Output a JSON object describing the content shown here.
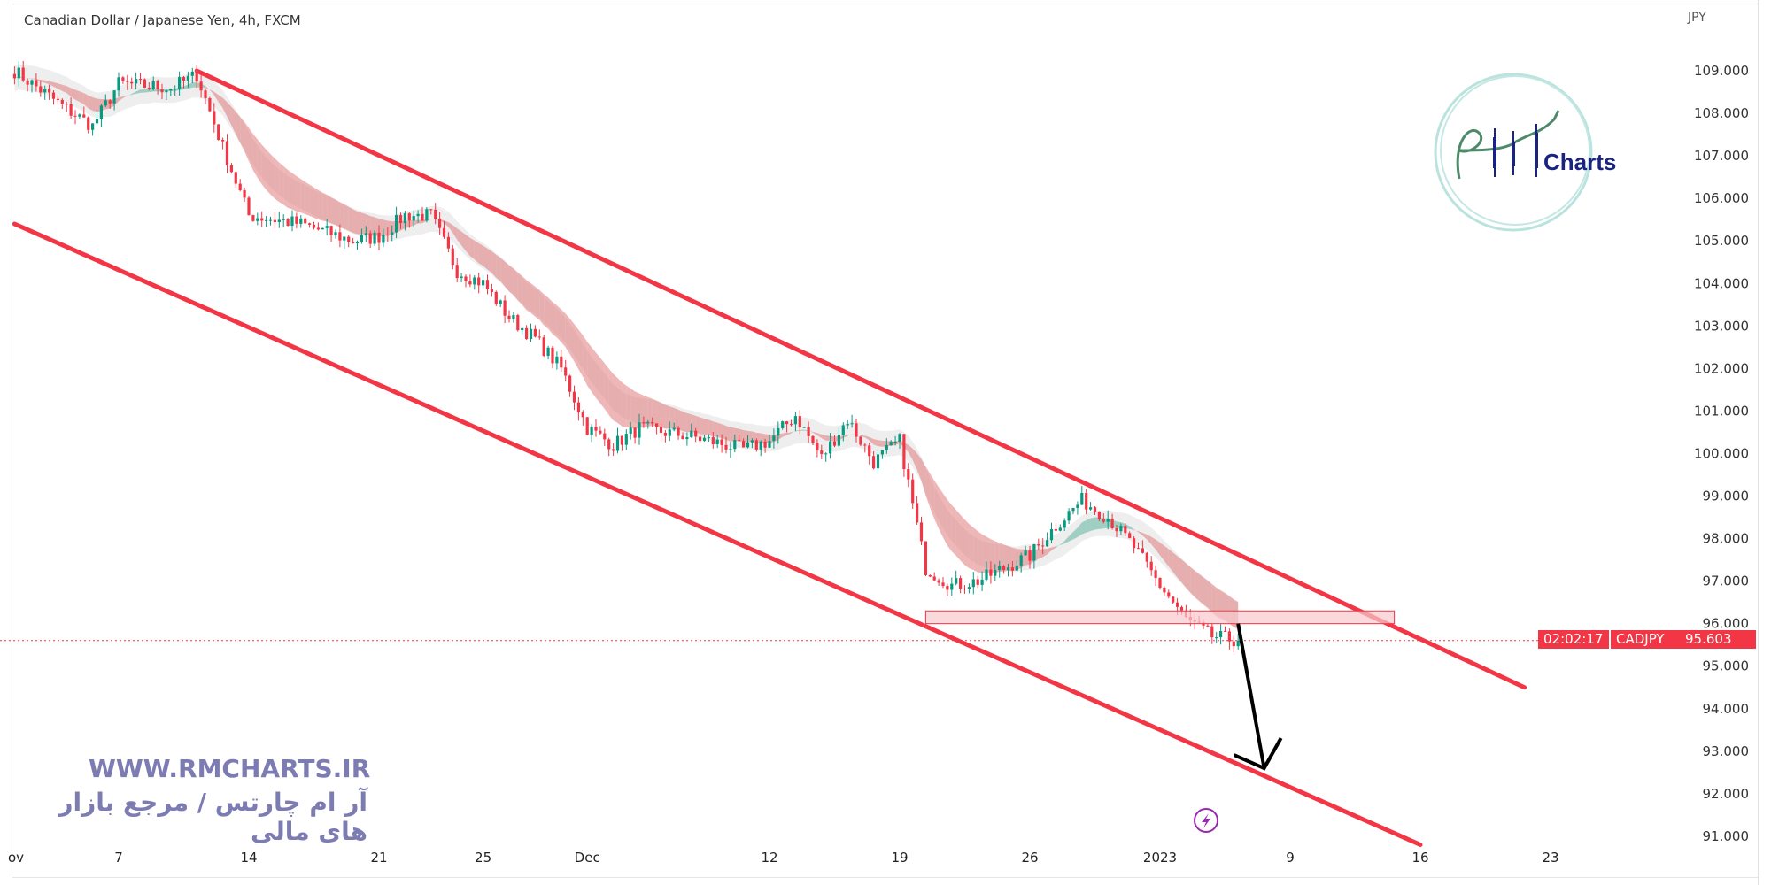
{
  "header": {
    "title": "Canadian Dollar / Japanese Yen, 4h, FXCM",
    "currency": "JPY"
  },
  "price_label": {
    "symbol": "CADJPY",
    "price": "95.603",
    "countdown": "02:02:17"
  },
  "watermark": {
    "site": "WWW.RMCHARTS.IR",
    "tagline": "آر ام چارتس / مرجع بازار های مالی",
    "logo_text": "RM Charts"
  },
  "colors": {
    "up": "#089981",
    "down": "#f23645",
    "channel": "#f23645",
    "arrow": "#000000",
    "zone_fill": "#f8c8cc",
    "lightning": "#9c27b0"
  },
  "icons": {
    "event": "lightning-icon"
  },
  "chart_data": {
    "type": "candlestick",
    "title": "Canadian Dollar / Japanese Yen, 4h, FXCM",
    "ylabel": "JPY",
    "ylim": [
      91,
      109
    ],
    "y_ticks": [
      "109.000",
      "108.000",
      "107.000",
      "106.000",
      "105.000",
      "104.000",
      "103.000",
      "102.000",
      "101.000",
      "100.000",
      "99.000",
      "98.000",
      "97.000",
      "96.000",
      "95.000",
      "94.000",
      "93.000",
      "92.000",
      "91.000"
    ],
    "x_ticks": [
      {
        "label": "ov",
        "date": "2022-10-31"
      },
      {
        "label": "7",
        "date": "2022-11-07"
      },
      {
        "label": "14",
        "date": "2022-11-14"
      },
      {
        "label": "21",
        "date": "2022-11-21"
      },
      {
        "label": "25",
        "date": "2022-11-25"
      },
      {
        "label": "Dec",
        "date": "2022-12-01"
      },
      {
        "label": "12",
        "date": "2022-12-12"
      },
      {
        "label": "19",
        "date": "2022-12-19"
      },
      {
        "label": "26",
        "date": "2022-12-26"
      },
      {
        "label": "2023",
        "date": "2023-01-02"
      },
      {
        "label": "9",
        "date": "2023-01-09"
      },
      {
        "label": "16",
        "date": "2023-01-16"
      },
      {
        "label": "23",
        "date": "2023-01-23"
      }
    ],
    "close_path": [
      [
        "2022-11-01",
        109.0
      ],
      [
        "2022-11-03",
        108.1
      ],
      [
        "2022-11-04",
        107.7
      ],
      [
        "2022-11-07",
        108.7
      ],
      [
        "2022-11-09",
        108.6
      ],
      [
        "2022-11-10",
        108.9
      ],
      [
        "2022-11-11",
        107.2
      ],
      [
        "2022-11-14",
        105.6
      ],
      [
        "2022-11-16",
        105.4
      ],
      [
        "2022-11-18",
        105.0
      ],
      [
        "2022-11-21",
        105.1
      ],
      [
        "2022-11-22",
        105.6
      ],
      [
        "2022-11-23",
        105.6
      ],
      [
        "2022-11-24",
        104.3
      ],
      [
        "2022-11-25",
        104.0
      ],
      [
        "2022-11-28",
        103.2
      ],
      [
        "2022-11-29",
        102.7
      ],
      [
        "2022-11-30",
        102.0
      ],
      [
        "2022-12-01",
        100.6
      ],
      [
        "2022-12-02",
        100.2
      ],
      [
        "2022-12-05",
        100.6
      ],
      [
        "2022-12-07",
        100.4
      ],
      [
        "2022-12-09",
        100.1
      ],
      [
        "2022-12-12",
        100.3
      ],
      [
        "2022-12-13",
        100.9
      ],
      [
        "2022-12-14",
        99.9
      ],
      [
        "2022-12-15",
        100.8
      ],
      [
        "2022-12-16",
        99.8
      ],
      [
        "2022-12-19",
        100.3
      ],
      [
        "2022-12-20",
        97.3
      ],
      [
        "2022-12-21",
        96.9
      ],
      [
        "2022-12-22",
        97.0
      ],
      [
        "2022-12-23",
        97.3
      ],
      [
        "2022-12-26",
        97.6
      ],
      [
        "2022-12-27",
        98.3
      ],
      [
        "2022-12-28",
        98.9
      ],
      [
        "2022-12-29",
        98.5
      ],
      [
        "2022-12-30",
        97.8
      ],
      [
        "2023-01-02",
        96.9
      ],
      [
        "2023-01-03",
        96.1
      ],
      [
        "2023-01-04",
        95.7
      ],
      [
        "2023-01-05",
        95.6
      ]
    ],
    "last_price": 95.603,
    "annotations": {
      "channel_upper": [
        [
          "2022-11-10",
          109.0
        ],
        [
          "2023-01-20",
          94.5
        ]
      ],
      "channel_lower": [
        [
          "2022-11-01",
          105.4
        ],
        [
          "2023-01-16",
          90.8
        ]
      ],
      "zone": {
        "from": "2022-12-20",
        "to": "2023-01-13",
        "top": 96.3,
        "bottom": 96.0
      },
      "arrow": {
        "from": [
          "2023-01-05",
          96.0
        ],
        "to": [
          "2023-01-07",
          92.6
        ]
      }
    }
  }
}
